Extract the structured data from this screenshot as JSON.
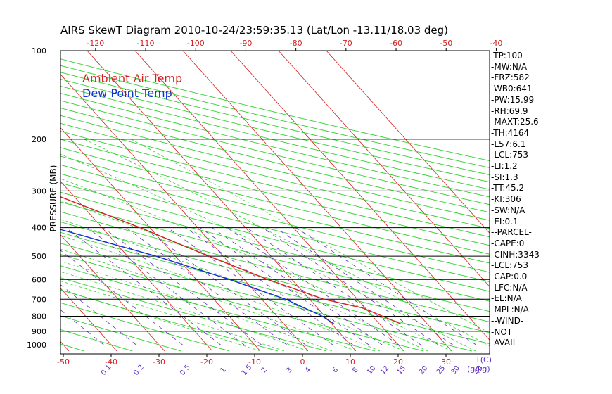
{
  "chart_data": {
    "type": "line",
    "title": "AIRS SkewT Diagram 2010-10-24/23:59:35.13 (Lat/Lon -13.11/18.03 deg)",
    "ylabel": "PRESSURE (MB)",
    "xlabel": "T(C)",
    "mixing_ratio_unit": "(g/kg)",
    "legend": [
      "Ambient Air Temp",
      "Dew Point Temp"
    ],
    "legend_colors": [
      "#d42020",
      "#1030d0"
    ],
    "ylim": [
      1000,
      100
    ],
    "pressure_levels": [
      100,
      200,
      300,
      400,
      500,
      600,
      700,
      800,
      900,
      1000
    ],
    "bottom_temp_ticks": [
      "-50",
      "-40",
      "-30",
      "-20",
      "-10",
      "0",
      "10",
      "20",
      "30"
    ],
    "top_temp_ticks": [
      "-120",
      "-110",
      "-100",
      "-90",
      "-80",
      "-70",
      "-60",
      "-50",
      "-40"
    ],
    "mixing_ratio_ticks": [
      "0.1",
      "0.2",
      "0.5",
      "1",
      "1.5",
      "2",
      "3",
      "4",
      "6",
      "8",
      "10",
      "12",
      "15",
      "20",
      "25",
      "30",
      "40"
    ],
    "series": [
      {
        "name": "Ambient Air Temp",
        "color": "#d42020",
        "points": [
          [
            850,
            24.5
          ],
          [
            750,
            19.5
          ],
          [
            700,
            13.0
          ],
          [
            600,
            5.0
          ],
          [
            500,
            -3.0
          ],
          [
            400,
            -12.0
          ],
          [
            300,
            -25.0
          ],
          [
            250,
            -38.0
          ],
          [
            200,
            -53.0
          ],
          [
            175,
            -63.0
          ],
          [
            150,
            -70.0
          ],
          [
            125,
            -74.0
          ],
          [
            100,
            -76.0
          ]
        ]
      },
      {
        "name": "Dew Point Temp",
        "color": "#1030d0",
        "points": [
          [
            850,
            10.5
          ],
          [
            800,
            9.5
          ],
          [
            700,
            5.0
          ],
          [
            600,
            -3.0
          ],
          [
            500,
            -14.0
          ],
          [
            400,
            -30.0
          ],
          [
            300,
            -47.0
          ],
          [
            250,
            -58.0
          ],
          [
            200,
            -71.0
          ],
          [
            175,
            -79.0
          ],
          [
            150,
            -85.0
          ],
          [
            125,
            -89.0
          ],
          [
            100,
            -92.0
          ]
        ]
      }
    ]
  },
  "indices": [
    "TP:100",
    "MW:N/A",
    "FRZ:582",
    "WB0:641",
    "PW:15.99",
    "RH:69.9",
    "MAXT:25.6",
    "TH:4164",
    "L57:6.1",
    "LCL:753",
    "LI:1.2",
    "SI:1.3",
    "TT:45.2",
    "KI:306",
    "SW:N/A",
    "EI:0.1",
    "-PARCEL-",
    "CAPE:0",
    "CINH:3343",
    "LCL:753",
    "CAP:0.0",
    "LFC:N/A",
    "EL:N/A",
    "MPL:N/A",
    "-WIND-",
    "NOT",
    "AVAIL"
  ]
}
